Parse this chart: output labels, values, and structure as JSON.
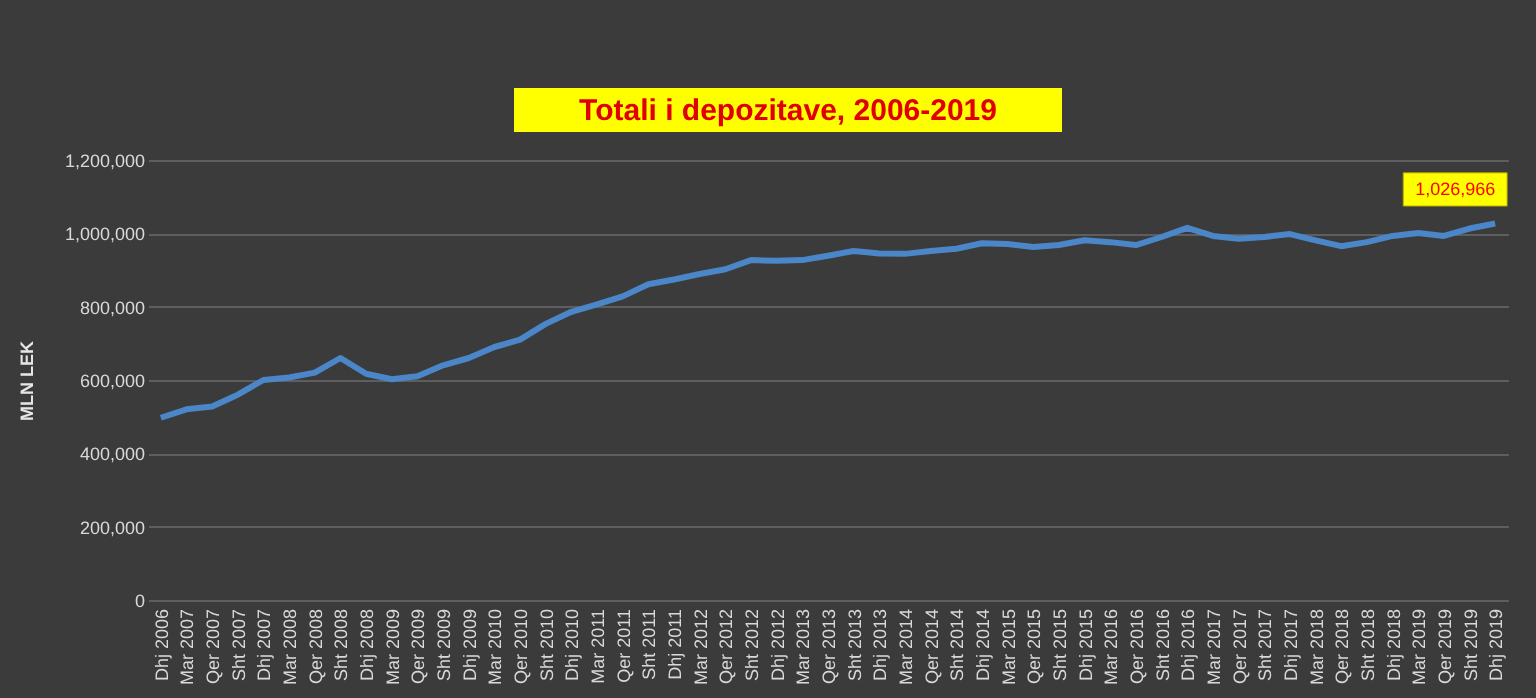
{
  "chart_data": {
    "type": "line",
    "title": "Totali i depozitave, 2006-2019",
    "ylabel": "MLN LEK",
    "categories": [
      "Dhj 2006",
      "Mar 2007",
      "Qer 2007",
      "Sht 2007",
      "Dhj 2007",
      "Mar 2008",
      "Qer 2008",
      "Sht 2008",
      "Dhj 2008",
      "Mar 2009",
      "Qer 2009",
      "Sht 2009",
      "Dhj 2009",
      "Mar 2010",
      "Qer 2010",
      "Sht 2010",
      "Dhj 2010",
      "Mar 2011",
      "Qer 2011",
      "Sht 2011",
      "Dhj 2011",
      "Mar 2012",
      "Qer 2012",
      "Sht 2012",
      "Dhj 2012",
      "Mar 2013",
      "Qer 2013",
      "Sht 2013",
      "Dhj 2013",
      "Mar 2014",
      "Qer 2014",
      "Sht 2014",
      "Dhj 2014",
      "Mar 2015",
      "Qer 2015",
      "Sht 2015",
      "Dhj 2015",
      "Mar 2016",
      "Qer 2016",
      "Sht 2016",
      "Dhj 2016",
      "Mar 2017",
      "Qer 2017",
      "Sht 2017",
      "Dhj 2017",
      "Mar 2018",
      "Qer 2018",
      "Sht 2018",
      "Dhj 2018",
      "Mar 2019",
      "Qer 2019",
      "Sht 2019",
      "Dhj 2019"
    ],
    "series": [
      {
        "color": "#4a86c8",
        "values": [
          497000,
          520000,
          528000,
          560000,
          600000,
          607000,
          620000,
          660000,
          617000,
          602000,
          610000,
          640000,
          660000,
          690000,
          710000,
          753000,
          786000,
          806000,
          828000,
          861000,
          874000,
          889000,
          902000,
          927000,
          925000,
          927000,
          939000,
          952000,
          945000,
          944000,
          952000,
          958000,
          973000,
          971000,
          963000,
          968000,
          981000,
          976000,
          968000,
          990000,
          1015000,
          993000,
          985000,
          990000,
          998000,
          981000,
          965000,
          976000,
          993000,
          1001000,
          993000,
          1013000,
          1026966
        ],
        "value_labels": [
          null,
          null,
          null,
          null,
          null,
          null,
          null,
          null,
          null,
          null,
          null,
          null,
          null,
          null,
          null,
          null,
          null,
          null,
          null,
          null,
          null,
          null,
          null,
          null,
          null,
          null,
          null,
          null,
          null,
          null,
          null,
          null,
          null,
          null,
          null,
          null,
          null,
          null,
          null,
          null,
          null,
          null,
          null,
          null,
          null,
          null,
          null,
          null,
          null,
          null,
          null,
          null,
          "1,026,966"
        ]
      }
    ],
    "ylim": [
      0,
      1200000
    ],
    "yticks": [
      0,
      {
        "value": 200000,
        "label": "200,000"
      },
      {
        "value": 400000,
        "label": "400,000"
      },
      {
        "value": 600000,
        "label": "600,000"
      },
      {
        "value": 800000,
        "label": "800,000"
      },
      {
        "value": 1000000,
        "label": "1,000,000"
      },
      {
        "value": 1200000,
        "label": "1,200,000"
      }
    ],
    "grid": "y",
    "legend": false,
    "marker": "none",
    "line_style": "solid"
  }
}
